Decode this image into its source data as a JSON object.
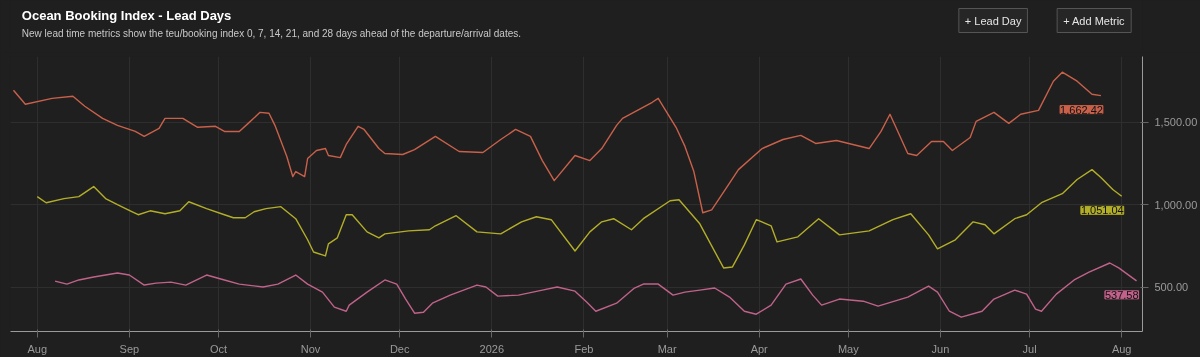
{
  "chart_data": {
    "type": "line",
    "title": "Ocean Booking Index - Lead Days",
    "subtitle": "New lead time metrics show the teu/booking index 0, 7, 14, 21, and 28 days ahead of the departure/arrival dates.",
    "annotations": [
      "+ Lead Day",
      "+ Add Metric"
    ],
    "xlim": [
      "2025-07-23",
      "2026-08-08"
    ],
    "xticks": [
      {
        "value": "2025-08-01",
        "label": "Aug"
      },
      {
        "value": "2025-09-01",
        "label": "Sep"
      },
      {
        "value": "2025-10-01",
        "label": "Oct"
      },
      {
        "value": "2025-11-01",
        "label": "Nov"
      },
      {
        "value": "2025-12-01",
        "label": "Dec"
      },
      {
        "value": "2026-01-01",
        "label": "2026"
      },
      {
        "value": "2026-02-01",
        "label": "Feb"
      },
      {
        "value": "2026-03-01",
        "label": "Mar"
      },
      {
        "value": "2026-04-01",
        "label": "Apr"
      },
      {
        "value": "2026-05-01",
        "label": "May"
      },
      {
        "value": "2026-06-01",
        "label": "Jun"
      },
      {
        "value": "2026-07-01",
        "label": "Jul"
      },
      {
        "value": "2026-08-01",
        "label": "Aug"
      }
    ],
    "ylim": [
      230,
      1900
    ],
    "yticks": [
      {
        "value": 500,
        "label": "500.00"
      },
      {
        "value": 1000,
        "label": "1,000.00"
      },
      {
        "value": 1500,
        "label": "1,500.00"
      }
    ],
    "grid": true,
    "marker": "none",
    "line_style": "solid",
    "series": [
      {
        "color": "#c8604a",
        "x": [
          "2025-07-24",
          "2025-07-28",
          "2025-08-06",
          "2025-08-13",
          "2025-08-17",
          "2025-08-23",
          "2025-08-28",
          "2025-09-03",
          "2025-09-06",
          "2025-09-11",
          "2025-09-13",
          "2025-09-19",
          "2025-09-24",
          "2025-09-30",
          "2025-10-03",
          "2025-10-08",
          "2025-10-11",
          "2025-10-15",
          "2025-10-18",
          "2025-10-20",
          "2025-10-24",
          "2025-10-26",
          "2025-10-27",
          "2025-10-30",
          "2025-10-31",
          "2025-11-03",
          "2025-11-06",
          "2025-11-07",
          "2025-11-11",
          "2025-11-13",
          "2025-11-17",
          "2025-11-19",
          "2025-11-24",
          "2025-11-26",
          "2025-12-02",
          "2025-12-06",
          "2025-12-13",
          "2025-12-21",
          "2025-12-29",
          "2026-01-04",
          "2026-01-09",
          "2026-01-14",
          "2026-01-18",
          "2026-01-22",
          "2026-01-29",
          "2026-02-03",
          "2026-02-07",
          "2026-02-12",
          "2026-02-14",
          "2026-02-24",
          "2026-02-26",
          "2026-03-04",
          "2026-03-07",
          "2026-03-10",
          "2026-03-13",
          "2026-03-16",
          "2026-03-21",
          "2026-03-25",
          "2026-04-02",
          "2026-04-09",
          "2026-04-15",
          "2026-04-20",
          "2026-04-27",
          "2026-05-08",
          "2026-05-12",
          "2026-05-15",
          "2026-05-17",
          "2026-05-21",
          "2026-05-24",
          "2026-05-29",
          "2026-06-02",
          "2026-06-05",
          "2026-06-11",
          "2026-06-13",
          "2026-06-19",
          "2026-06-24",
          "2026-06-28",
          "2026-07-04",
          "2026-07-09",
          "2026-07-12",
          "2026-07-17",
          "2026-07-22",
          "2026-07-25"
        ],
        "values": [
          1695,
          1610,
          1646,
          1659,
          1598,
          1524,
          1482,
          1445,
          1415,
          1463,
          1524,
          1524,
          1470,
          1476,
          1445,
          1445,
          1494,
          1561,
          1555,
          1482,
          1293,
          1171,
          1201,
          1171,
          1280,
          1329,
          1341,
          1299,
          1286,
          1366,
          1476,
          1457,
          1341,
          1311,
          1305,
          1335,
          1415,
          1323,
          1317,
          1396,
          1457,
          1415,
          1268,
          1146,
          1299,
          1268,
          1341,
          1482,
          1524,
          1622,
          1646,
          1470,
          1354,
          1201,
          951,
          969,
          1104,
          1213,
          1341,
          1396,
          1421,
          1372,
          1390,
          1341,
          1445,
          1549,
          1470,
          1311,
          1299,
          1384,
          1384,
          1329,
          1408,
          1506,
          1561,
          1494,
          1549,
          1573,
          1750,
          1805,
          1750,
          1671,
          1662.42
        ],
        "value_labels": [
          null,
          null,
          null,
          null,
          null,
          null,
          null,
          null,
          null,
          null,
          null,
          null,
          null,
          null,
          null,
          null,
          null,
          null,
          null,
          null,
          null,
          null,
          null,
          null,
          null,
          null,
          null,
          null,
          null,
          null,
          null,
          null,
          null,
          null,
          null,
          null,
          null,
          null,
          null,
          null,
          null,
          null,
          null,
          null,
          null,
          null,
          null,
          null,
          null,
          null,
          null,
          null,
          null,
          null,
          null,
          null,
          null,
          null,
          null,
          null,
          null,
          null,
          null,
          null,
          null,
          null,
          null,
          null,
          null,
          null,
          null,
          null,
          null,
          null,
          null,
          null,
          null,
          null,
          null,
          null,
          null,
          null,
          "1,662.42"
        ]
      },
      {
        "color": "#b3ae28",
        "x": [
          "2025-08-01",
          "2025-08-04",
          "2025-08-10",
          "2025-08-15",
          "2025-08-20",
          "2025-08-24",
          "2025-08-28",
          "2025-09-02",
          "2025-09-04",
          "2025-09-08",
          "2025-09-13",
          "2025-09-18",
          "2025-09-21",
          "2025-09-27",
          "2025-10-03",
          "2025-10-06",
          "2025-10-10",
          "2025-10-13",
          "2025-10-17",
          "2025-10-22",
          "2025-10-27",
          "2025-10-31",
          "2025-11-02",
          "2025-11-06",
          "2025-11-07",
          "2025-11-10",
          "2025-11-13",
          "2025-11-15",
          "2025-11-20",
          "2025-11-24",
          "2025-11-26",
          "2025-12-04",
          "2025-12-11",
          "2025-12-13",
          "2025-12-20",
          "2025-12-27",
          "2026-01-04",
          "2026-01-11",
          "2026-01-16",
          "2026-01-21",
          "2026-01-29",
          "2026-02-03",
          "2026-02-07",
          "2026-02-11",
          "2026-02-17",
          "2026-02-21",
          "2026-03-02",
          "2026-03-05",
          "2026-03-12",
          "2026-03-20",
          "2026-03-23",
          "2026-03-27",
          "2026-03-31",
          "2026-04-05",
          "2026-04-07",
          "2026-04-14",
          "2026-04-21",
          "2026-04-28",
          "2026-05-08",
          "2026-05-16",
          "2026-05-22",
          "2026-05-28",
          "2026-05-31",
          "2026-06-06",
          "2026-06-12",
          "2026-06-16",
          "2026-06-19",
          "2026-06-26",
          "2026-06-30",
          "2026-07-05",
          "2026-07-12",
          "2026-07-17",
          "2026-07-22",
          "2026-07-25",
          "2026-07-29",
          "2026-08-01"
        ],
        "values": [
          1049,
          1012,
          1037,
          1049,
          1110,
          1037,
          1000,
          957,
          939,
          963,
          945,
          963,
          1018,
          976,
          939,
          921,
          921,
          957,
          976,
          988,
          915,
          787,
          713,
          689,
          762,
          799,
          939,
          939,
          835,
          799,
          823,
          841,
          848,
          872,
          933,
          835,
          823,
          896,
          927,
          909,
          719,
          835,
          896,
          915,
          848,
          915,
          1024,
          1030,
          884,
          616,
          622,
          756,
          909,
          872,
          774,
          805,
          915,
          817,
          841,
          909,
          945,
          817,
          732,
          787,
          896,
          878,
          823,
          915,
          939,
          1012,
          1067,
          1153,
          1213,
          1165,
          1092,
          1051.04
        ],
        "value_labels": [
          null,
          null,
          null,
          null,
          null,
          null,
          null,
          null,
          null,
          null,
          null,
          null,
          null,
          null,
          null,
          null,
          null,
          null,
          null,
          null,
          null,
          null,
          null,
          null,
          null,
          null,
          null,
          null,
          null,
          null,
          null,
          null,
          null,
          null,
          null,
          null,
          null,
          null,
          null,
          null,
          null,
          null,
          null,
          null,
          null,
          null,
          null,
          null,
          null,
          null,
          null,
          null,
          null,
          null,
          null,
          null,
          null,
          null,
          null,
          null,
          null,
          null,
          null,
          null,
          null,
          null,
          null,
          null,
          null,
          null,
          null,
          null,
          null,
          null,
          null,
          "1,051.04"
        ]
      },
      {
        "color": "#c0628a",
        "x": [
          "2025-08-07",
          "2025-08-11",
          "2025-08-15",
          "2025-08-20",
          "2025-08-28",
          "2025-09-01",
          "2025-09-06",
          "2025-09-10",
          "2025-09-15",
          "2025-09-20",
          "2025-09-27",
          "2025-10-03",
          "2025-10-08",
          "2025-10-16",
          "2025-10-21",
          "2025-10-27",
          "2025-10-31",
          "2025-11-05",
          "2025-11-09",
          "2025-11-13",
          "2025-11-14",
          "2025-11-20",
          "2025-11-26",
          "2025-11-30",
          "2025-12-03",
          "2025-12-06",
          "2025-12-09",
          "2025-12-12",
          "2025-12-18",
          "2025-12-27",
          "2025-12-30",
          "2026-01-03",
          "2026-01-10",
          "2026-01-18",
          "2026-01-23",
          "2026-01-29",
          "2026-02-02",
          "2026-02-05",
          "2026-02-12",
          "2026-02-18",
          "2026-02-21",
          "2026-02-26",
          "2026-03-03",
          "2026-03-07",
          "2026-03-12",
          "2026-03-17",
          "2026-03-22",
          "2026-03-27",
          "2026-03-31",
          "2026-04-05",
          "2026-04-10",
          "2026-04-15",
          "2026-04-19",
          "2026-04-22",
          "2026-04-28",
          "2026-05-06",
          "2026-05-11",
          "2026-05-21",
          "2026-05-28",
          "2026-05-31",
          "2026-06-04",
          "2026-06-08",
          "2026-06-15",
          "2026-06-19",
          "2026-06-26",
          "2026-06-30",
          "2026-07-03",
          "2026-07-05",
          "2026-07-10",
          "2026-07-16",
          "2026-07-21",
          "2026-07-28",
          "2026-07-31",
          "2026-08-06"
        ],
        "values": [
          536,
          518,
          543,
          561,
          585,
          573,
          512,
          524,
          530,
          512,
          573,
          543,
          518,
          500,
          518,
          573,
          518,
          469,
          378,
          353,
          390,
          469,
          543,
          518,
          427,
          341,
          347,
          402,
          451,
          512,
          500,
          445,
          451,
          481,
          500,
          475,
          408,
          353,
          402,
          494,
          518,
          518,
          451,
          469,
          481,
          494,
          439,
          353,
          335,
          390,
          518,
          549,
          451,
          390,
          427,
          414,
          384,
          439,
          506,
          469,
          353,
          317,
          353,
          427,
          481,
          457,
          366,
          353,
          457,
          543,
          591,
          646,
          616,
          537.58
        ],
        "value_labels": [
          null,
          null,
          null,
          null,
          null,
          null,
          null,
          null,
          null,
          null,
          null,
          null,
          null,
          null,
          null,
          null,
          null,
          null,
          null,
          null,
          null,
          null,
          null,
          null,
          null,
          null,
          null,
          null,
          null,
          null,
          null,
          null,
          null,
          null,
          null,
          null,
          null,
          null,
          null,
          null,
          null,
          null,
          null,
          null,
          null,
          null,
          null,
          null,
          null,
          null,
          null,
          null,
          null,
          null,
          null,
          null,
          null,
          null,
          null,
          null,
          null,
          null,
          null,
          null,
          null,
          null,
          null,
          null,
          null,
          null,
          null,
          null,
          null,
          "537.58"
        ]
      }
    ]
  }
}
